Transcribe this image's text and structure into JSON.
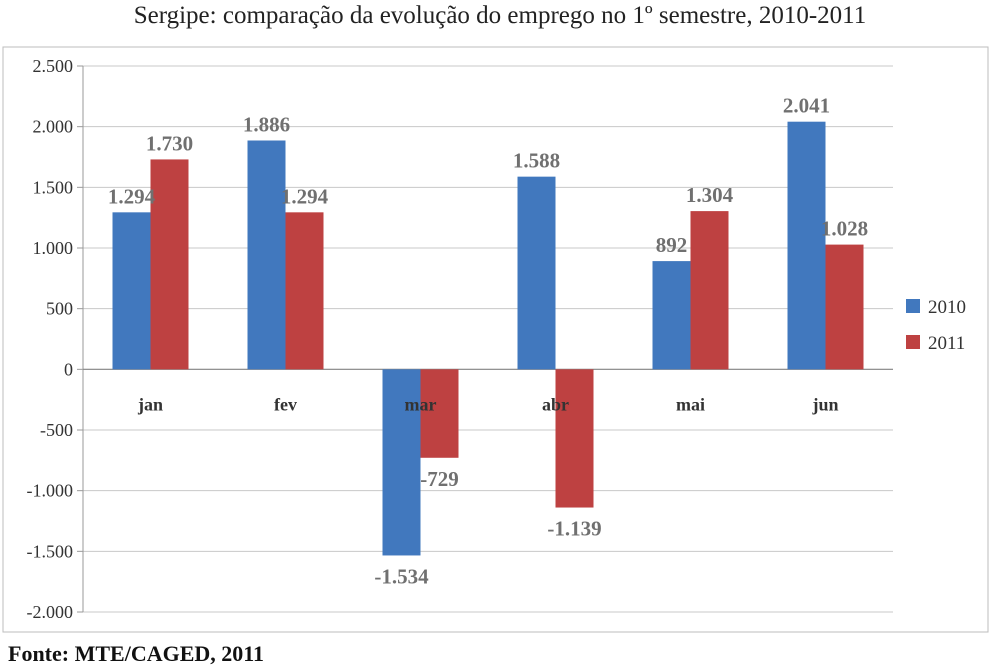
{
  "chart_data": {
    "type": "bar",
    "title": "Sergipe: comparação da evolução do emprego no 1º semestre, 2010-2011",
    "source": "Fonte: MTE/CAGED, 2011",
    "categories": [
      "jan",
      "fev",
      "mar",
      "abr",
      "mai",
      "jun"
    ],
    "series": [
      {
        "name": "2010",
        "color": "#4178BE",
        "values": [
          1294,
          1886,
          -1534,
          1588,
          892,
          2041
        ],
        "labels": [
          "1.294",
          "1.886",
          "-1.534",
          "1.588",
          "892",
          "2.041"
        ]
      },
      {
        "name": "2011",
        "color": "#BE4141",
        "values": [
          1730,
          1294,
          -729,
          -1139,
          1304,
          1028
        ],
        "labels": [
          "1.730",
          "1.294",
          "-729",
          "-1.139",
          "1.304",
          "1.028"
        ]
      }
    ],
    "ylim": [
      -2000,
      2500
    ],
    "yticks": [
      2500,
      2000,
      1500,
      1000,
      500,
      0,
      -500,
      -1000,
      -1500,
      -2000
    ],
    "ytick_labels": [
      "2.500",
      "2.000",
      "1.500",
      "1.000",
      "500",
      "0",
      "-500",
      "-1.000",
      "-1.500",
      "-2.000"
    ],
    "grid": true,
    "legend": "right"
  }
}
